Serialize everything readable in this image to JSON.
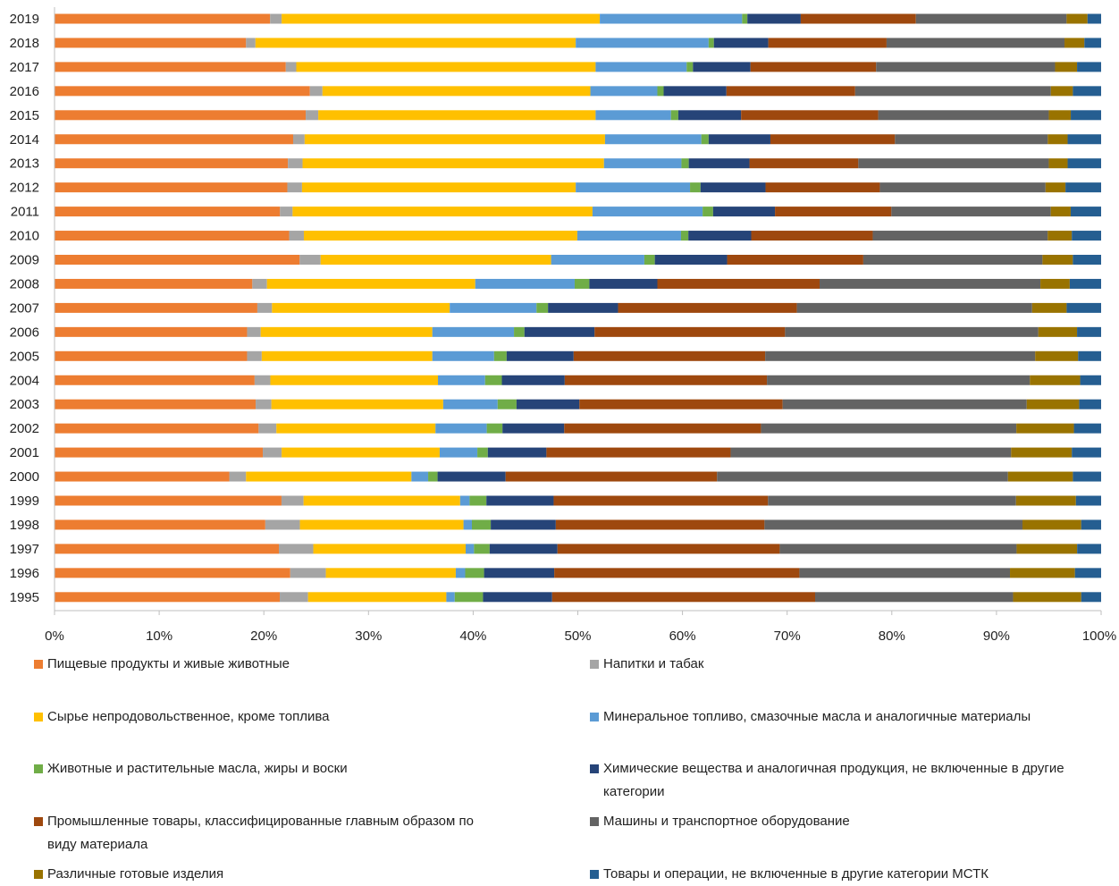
{
  "chart_data": {
    "type": "bar",
    "orientation": "horizontal",
    "stacked": true,
    "normalized": true,
    "title": "",
    "xlabel": "",
    "ylabel": "",
    "xlim": [
      0,
      100
    ],
    "xticks": [
      "0%",
      "10%",
      "20%",
      "30%",
      "40%",
      "50%",
      "60%",
      "70%",
      "80%",
      "90%",
      "100%"
    ],
    "grid": false,
    "legend_position": "bottom",
    "categories": [
      "2019",
      "2018",
      "2017",
      "2016",
      "2015",
      "2014",
      "2013",
      "2012",
      "2011",
      "2010",
      "2009",
      "2008",
      "2007",
      "2006",
      "2005",
      "2004",
      "2003",
      "2002",
      "2001",
      "2000",
      "1999",
      "1998",
      "1997",
      "1996",
      "1995"
    ],
    "series": [
      {
        "name": "Пищевые продукты и живые животные",
        "color": "#ED7D31",
        "values": [
          20.6,
          18.3,
          22.1,
          24.4,
          24.0,
          22.8,
          22.3,
          22.2,
          21.5,
          22.4,
          23.4,
          18.9,
          19.4,
          18.4,
          18.4,
          19.1,
          19.2,
          19.5,
          19.9,
          16.7,
          21.6,
          20.1,
          21.5,
          22.5,
          21.5
        ]
      },
      {
        "name": "Напитки и табак",
        "color": "#A5A5A5",
        "values": [
          1.1,
          0.9,
          1.0,
          1.2,
          1.2,
          1.1,
          1.4,
          1.4,
          1.2,
          1.4,
          2.0,
          1.4,
          1.4,
          1.3,
          1.4,
          1.5,
          1.5,
          1.7,
          1.8,
          1.6,
          2.1,
          3.3,
          3.3,
          3.4,
          2.7
        ]
      },
      {
        "name": "Сырье непродовольственное, кроме топлива",
        "color": "#FFC000",
        "values": [
          30.4,
          30.6,
          28.6,
          25.6,
          26.5,
          28.7,
          28.8,
          26.1,
          28.6,
          26.1,
          22.0,
          19.9,
          17.0,
          16.4,
          16.3,
          16.0,
          16.4,
          15.2,
          15.1,
          15.8,
          14.9,
          15.6,
          14.6,
          12.4,
          13.2
        ]
      },
      {
        "name": "Минеральное топливо, смазочные масла и аналогичные материалы",
        "color": "#5B9BD5",
        "values": [
          13.6,
          12.7,
          8.7,
          6.4,
          7.2,
          9.2,
          7.4,
          10.9,
          10.5,
          9.9,
          8.9,
          9.5,
          8.3,
          7.8,
          5.9,
          4.5,
          5.2,
          4.9,
          3.6,
          1.6,
          0.9,
          0.8,
          0.8,
          0.9,
          0.8
        ]
      },
      {
        "name": "Животные и растительные масла, жиры и воски",
        "color": "#70AD47",
        "values": [
          0.5,
          0.5,
          0.6,
          0.6,
          0.7,
          0.7,
          0.7,
          1.0,
          1.0,
          0.7,
          1.0,
          1.4,
          1.1,
          1.0,
          1.2,
          1.6,
          1.8,
          1.5,
          1.0,
          0.9,
          1.6,
          1.8,
          1.5,
          1.8,
          2.7
        ]
      },
      {
        "name": "Химические вещества и аналогичная продукция, не включенные в другие категории",
        "color": "#264478",
        "values": [
          5.1,
          5.2,
          5.5,
          6.0,
          6.0,
          5.9,
          5.8,
          6.2,
          5.9,
          6.0,
          6.9,
          6.5,
          6.7,
          6.7,
          6.4,
          6.0,
          6.0,
          5.9,
          5.6,
          6.5,
          6.4,
          6.2,
          6.5,
          6.7,
          6.6
        ]
      },
      {
        "name": "Промышленные товары, классифицированные главным образом по виду материала",
        "color": "#9E480E",
        "values": [
          11.0,
          11.3,
          12.0,
          12.3,
          13.1,
          11.9,
          10.4,
          10.9,
          11.1,
          11.6,
          13.0,
          15.5,
          17.1,
          18.2,
          18.3,
          19.3,
          19.4,
          18.8,
          17.6,
          20.2,
          20.4,
          19.9,
          21.3,
          23.4,
          25.1
        ]
      },
      {
        "name": "Машины и транспортное оборудование",
        "color": "#636363",
        "values": [
          14.4,
          17.0,
          17.1,
          18.7,
          16.3,
          14.6,
          18.2,
          15.8,
          15.2,
          16.7,
          17.1,
          21.1,
          22.5,
          24.2,
          25.8,
          25.1,
          23.3,
          24.4,
          26.8,
          27.8,
          23.6,
          24.6,
          22.7,
          20.1,
          18.9
        ]
      },
      {
        "name": "Различные готовые изделия",
        "color": "#997300",
        "values": [
          2.0,
          1.9,
          2.1,
          2.1,
          2.1,
          1.9,
          1.8,
          1.9,
          1.9,
          2.3,
          2.9,
          2.8,
          3.3,
          3.7,
          4.1,
          4.8,
          5.0,
          5.5,
          5.8,
          6.2,
          5.7,
          5.6,
          5.8,
          6.2,
          6.5
        ]
      },
      {
        "name": "Товары и операции, не включенные в другие категории МСТК",
        "color": "#255E91",
        "values": [
          1.3,
          1.6,
          2.3,
          2.7,
          2.9,
          3.2,
          3.2,
          3.4,
          2.9,
          2.8,
          2.7,
          3.0,
          3.3,
          2.3,
          2.2,
          2.0,
          2.1,
          2.6,
          2.8,
          2.7,
          2.4,
          1.9,
          2.3,
          2.5,
          1.9
        ]
      }
    ]
  }
}
